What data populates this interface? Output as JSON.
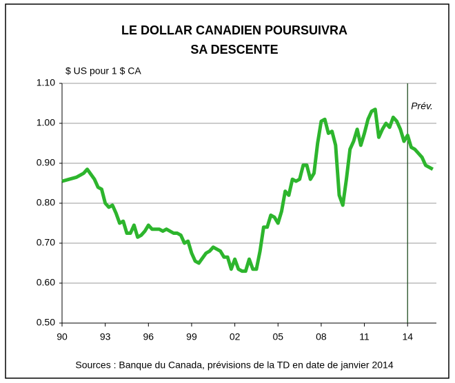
{
  "chart_data": {
    "type": "line",
    "title": "LE DOLLAR CANADIEN POURSUIVRA",
    "subtitle": "SA DESCENTE",
    "y_axis_label": "$ US pour 1 $ CA",
    "annotation": "Prév.",
    "forecast_start": 2014,
    "source": "Sources : Banque du Canada, prévisions de la TD en date de janvier 2014",
    "x": [
      1990.0,
      1990.5,
      1991.0,
      1991.5,
      1991.75,
      1992.25,
      1992.5,
      1992.75,
      1993.0,
      1993.25,
      1993.5,
      1993.75,
      1994.0,
      1994.25,
      1994.5,
      1994.75,
      1995.0,
      1995.25,
      1995.5,
      1995.75,
      1996.0,
      1996.25,
      1996.75,
      1997.0,
      1997.25,
      1997.75,
      1998.0,
      1998.25,
      1998.5,
      1998.75,
      1999.0,
      1999.25,
      1999.5,
      2000.0,
      2000.25,
      2000.5,
      2000.75,
      2001.0,
      2001.25,
      2001.5,
      2001.75,
      2002.0,
      2002.25,
      2002.5,
      2002.75,
      2003.0,
      2003.25,
      2003.5,
      2003.75,
      2004.0,
      2004.25,
      2004.5,
      2004.75,
      2005.0,
      2005.25,
      2005.5,
      2005.75,
      2006.0,
      2006.25,
      2006.5,
      2006.75,
      2007.0,
      2007.25,
      2007.5,
      2007.75,
      2008.0,
      2008.25,
      2008.5,
      2008.75,
      2009.0,
      2009.25,
      2009.5,
      2009.75,
      2010.0,
      2010.25,
      2010.5,
      2010.75,
      2011.0,
      2011.25,
      2011.5,
      2011.75,
      2012.0,
      2012.25,
      2012.5,
      2012.75,
      2013.0,
      2013.25,
      2013.5,
      2013.75,
      2014.0,
      2014.25,
      2014.5,
      2014.75,
      2015.0,
      2015.25,
      2015.5,
      2015.75
    ],
    "series": [
      {
        "name": "$ US pour 1 $ CA",
        "color": "#2db52d",
        "values": [
          0.855,
          0.86,
          0.865,
          0.875,
          0.885,
          0.86,
          0.84,
          0.835,
          0.8,
          0.79,
          0.795,
          0.775,
          0.75,
          0.755,
          0.725,
          0.725,
          0.745,
          0.715,
          0.72,
          0.73,
          0.745,
          0.735,
          0.735,
          0.73,
          0.735,
          0.725,
          0.725,
          0.72,
          0.7,
          0.705,
          0.675,
          0.655,
          0.65,
          0.675,
          0.68,
          0.69,
          0.685,
          0.68,
          0.665,
          0.665,
          0.635,
          0.66,
          0.635,
          0.63,
          0.63,
          0.66,
          0.635,
          0.635,
          0.68,
          0.74,
          0.74,
          0.77,
          0.765,
          0.75,
          0.78,
          0.83,
          0.82,
          0.86,
          0.855,
          0.86,
          0.895,
          0.895,
          0.86,
          0.875,
          0.95,
          1.005,
          1.01,
          0.975,
          0.98,
          0.945,
          0.82,
          0.795,
          0.86,
          0.935,
          0.955,
          0.985,
          0.945,
          0.975,
          1.01,
          1.03,
          1.035,
          0.965,
          0.985,
          1.0,
          0.99,
          1.015,
          1.005,
          0.985,
          0.955,
          0.97,
          0.94,
          0.935,
          0.925,
          0.915,
          0.895,
          0.89,
          0.885
        ]
      }
    ],
    "xlim": [
      1990,
      2016
    ],
    "xticks": [
      {
        "value": 1990,
        "label": "90"
      },
      {
        "value": 1993,
        "label": "93"
      },
      {
        "value": 1996,
        "label": "96"
      },
      {
        "value": 1999,
        "label": "99"
      },
      {
        "value": 2002,
        "label": "02"
      },
      {
        "value": 2005,
        "label": "05"
      },
      {
        "value": 2008,
        "label": "08"
      },
      {
        "value": 2011,
        "label": "11"
      },
      {
        "value": 2014,
        "label": "14"
      }
    ],
    "ylim": [
      0.5,
      1.1
    ],
    "yticks": [
      {
        "value": 0.5,
        "label": "0.50"
      },
      {
        "value": 0.6,
        "label": "0.60"
      },
      {
        "value": 0.7,
        "label": "0.70"
      },
      {
        "value": 0.8,
        "label": "0.80"
      },
      {
        "value": 0.9,
        "label": "0.90"
      },
      {
        "value": 1.0,
        "label": "1.00"
      },
      {
        "value": 1.1,
        "label": "1.10"
      }
    ],
    "grid": true
  }
}
